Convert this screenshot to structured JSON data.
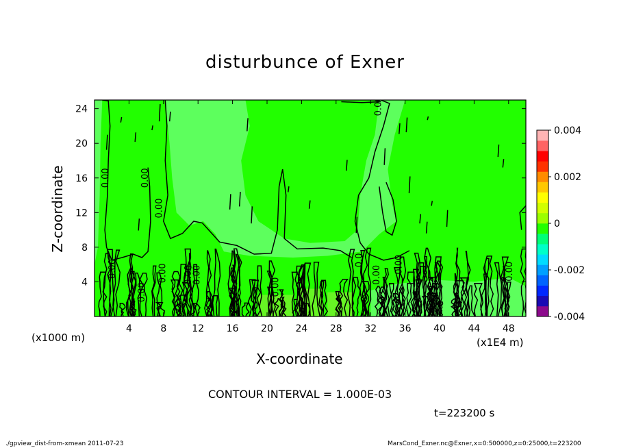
{
  "title": "disturbunce of Exner",
  "footer": {
    "left": "./gpview_dist-from-xmean  2011-07-23",
    "right": "MarsCond_Exner.nc@Exner,x=0:500000,z=0:25000,t=223200"
  },
  "colors": {
    "field_background": "#22ff00",
    "field_light": "#5dff5d",
    "field_yellowgreen": "#7ff030",
    "contour_line": "#000000"
  },
  "chart_data": {
    "type": "contour",
    "title": "disturbunce of Exner",
    "xlabel": "X-coordinate",
    "ylabel": "Z-coordinate",
    "x_unit_left": "(x1000 m)",
    "x_unit_right": "(x1E4 m)",
    "xlim": [
      0,
      50
    ],
    "ylim": [
      0,
      25
    ],
    "xticks": [
      4,
      8,
      12,
      16,
      20,
      24,
      28,
      32,
      36,
      40,
      44,
      48
    ],
    "yticks": [
      4,
      8,
      12,
      16,
      20,
      24
    ],
    "contour_interval_label": "CONTOUR INTERVAL = 1.000E-03",
    "time_label": "t=223200 s",
    "contour_labels": [
      {
        "text": "0.00",
        "x": 1.6,
        "z": 16
      },
      {
        "text": "0.00",
        "x": 6.2,
        "z": 16
      },
      {
        "text": "0.00",
        "x": 7.8,
        "z": 12.5
      },
      {
        "text": "0.00",
        "x": 2.4,
        "z": 5.5
      },
      {
        "text": "0.00",
        "x": 5.8,
        "z": 2.8
      },
      {
        "text": "0.00",
        "x": 8.2,
        "z": 5
      },
      {
        "text": "0.00",
        "x": 11.2,
        "z": 4.8
      },
      {
        "text": "0.00",
        "x": 12.2,
        "z": 4.8
      },
      {
        "text": "0.00",
        "x": 21.3,
        "z": 3.4
      },
      {
        "text": "0.0",
        "x": 31.0,
        "z": 6.5
      },
      {
        "text": "0.00",
        "x": 33.0,
        "z": 4.8
      },
      {
        "text": "0.00",
        "x": 35.6,
        "z": 6
      },
      {
        "text": "0.00",
        "x": 48.4,
        "z": 5.2
      },
      {
        "text": "0.00",
        "x": 33.2,
        "z": 24.3
      }
    ],
    "colorbar": {
      "min": -0.004,
      "max": 0.004,
      "tick_labels": [
        "0.004",
        "0.002",
        "0",
        "-0.002",
        "-0.004"
      ],
      "tick_values": [
        0.004,
        0.002,
        0,
        -0.002,
        -0.004
      ],
      "colors": [
        "#8c0a8c",
        "#1a0ab4",
        "#0028ff",
        "#0064ff",
        "#00a0ff",
        "#00dcff",
        "#00ffc8",
        "#00ff78",
        "#22ff00",
        "#9bff00",
        "#d2ff00",
        "#ffff00",
        "#ffc800",
        "#ff8c00",
        "#ff3200",
        "#ff0000",
        "#ff6464",
        "#ffb4b4"
      ]
    }
  }
}
